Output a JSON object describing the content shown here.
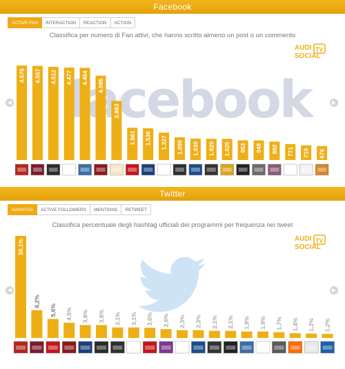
{
  "facebook": {
    "title": "Facebook",
    "tabs": [
      "ACTIVE FAN",
      "INTERACTION",
      "REACTION",
      "ACTION"
    ],
    "subtitle": "Classifica per numero di Fan attivi, che hanno scritto almeno un post o un commento",
    "watermark": "facebook",
    "logo": {
      "line1": "AUDI",
      "line2": "SOCIAL",
      "badge": "TV"
    },
    "chart_data": {
      "type": "bar",
      "values": [
        4576,
        4557,
        4512,
        4477,
        4464,
        4085,
        2863,
        1561,
        1536,
        1327,
        1099,
        1038,
        1029,
        1025,
        953,
        948,
        892,
        771,
        710,
        676
      ],
      "labels": [
        "4.576",
        "4.557",
        "4.512",
        "4.477",
        "4.464",
        "4.085",
        "2.863",
        "1.561",
        "1.536",
        "1.327",
        "1.099",
        "1.038",
        "1.029",
        "1.025",
        "953",
        "948",
        "892",
        "771",
        "710",
        "676"
      ],
      "ylim": [
        0,
        4576
      ],
      "thumb_colors": [
        "#b3261e",
        "#7a1b2a",
        "#2b2b2b",
        "#ffffff",
        "#3a6ea5",
        "#8b1a1a",
        "#f5e6c8",
        "#c4161c",
        "#1d3f7a",
        "#ffffff",
        "#2e2e2e",
        "#1b4d8c",
        "#333333",
        "#d9a520",
        "#222222",
        "#6b6b6b",
        "#8a5a7a",
        "#ffffff",
        "#f2f2f2",
        "#d4862a"
      ]
    }
  },
  "twitter": {
    "title": "Twitter",
    "tabs": [
      "HASHTAG",
      "ACTIVE FOLLOWERS",
      "MENTIONS",
      "RETWEET"
    ],
    "subtitle": "Classifica percentuale degli hashtag ufficiali dei programmi per frequenza nei tweet",
    "logo": {
      "line1": "AUDI",
      "line2": "SOCIAL",
      "badge": "TV"
    },
    "chart_data": {
      "type": "bar",
      "values": [
        30.1,
        8.2,
        5.6,
        4.5,
        3.8,
        3.8,
        3.1,
        3.1,
        3.0,
        2.6,
        2.3,
        2.3,
        2.1,
        2.1,
        1.9,
        1.9,
        1.7,
        1.4,
        1.3,
        1.2
      ],
      "labels": [
        "30,1%",
        "8,2%",
        "5,6%",
        "4,5%",
        "3,8%",
        "3,8%",
        "3,1%",
        "3,1%",
        "3,0%",
        "2,6%",
        "2,3%",
        "2,3%",
        "2,1%",
        "2,1%",
        "1,9%",
        "1,9%",
        "1,7%",
        "1,4%",
        "1,3%",
        "1,2%"
      ],
      "ylim": [
        0,
        30.1
      ],
      "thumb_colors": [
        "#b3261e",
        "#7a1b2a",
        "#c4161c",
        "#8b1a1a",
        "#1d3f7a",
        "#2b2b2b",
        "#2e2e2e",
        "#ffffff",
        "#c4161c",
        "#7a3a8a",
        "#ffffff",
        "#1b4d8c",
        "#333333",
        "#222222",
        "#3a6ea5",
        "#ffffff",
        "#5a5a5a",
        "#ff6a00",
        "#e8e8e8",
        "#1d5fa8"
      ]
    }
  }
}
